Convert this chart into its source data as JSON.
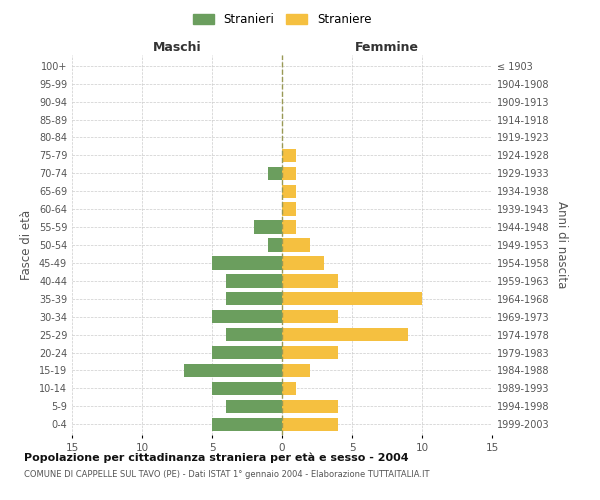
{
  "age_groups": [
    "0-4",
    "5-9",
    "10-14",
    "15-19",
    "20-24",
    "25-29",
    "30-34",
    "35-39",
    "40-44",
    "45-49",
    "50-54",
    "55-59",
    "60-64",
    "65-69",
    "70-74",
    "75-79",
    "80-84",
    "85-89",
    "90-94",
    "95-99",
    "100+"
  ],
  "birth_years": [
    "1999-2003",
    "1994-1998",
    "1989-1993",
    "1984-1988",
    "1979-1983",
    "1974-1978",
    "1969-1973",
    "1964-1968",
    "1959-1963",
    "1954-1958",
    "1949-1953",
    "1944-1948",
    "1939-1943",
    "1934-1938",
    "1929-1933",
    "1924-1928",
    "1919-1923",
    "1914-1918",
    "1909-1913",
    "1904-1908",
    "≤ 1903"
  ],
  "maschi": [
    5,
    4,
    5,
    7,
    5,
    4,
    5,
    4,
    4,
    5,
    1,
    2,
    0,
    0,
    1,
    0,
    0,
    0,
    0,
    0,
    0
  ],
  "femmine": [
    4,
    4,
    1,
    2,
    4,
    9,
    4,
    10,
    4,
    3,
    2,
    1,
    1,
    1,
    1,
    1,
    0,
    0,
    0,
    0,
    0
  ],
  "color_maschi": "#6b9e5e",
  "color_femmine": "#f5c040",
  "title": "Popolazione per cittadinanza straniera per età e sesso - 2004",
  "subtitle": "COMUNE DI CAPPELLE SUL TAVO (PE) - Dati ISTAT 1° gennaio 2004 - Elaborazione TUTTAITALIA.IT",
  "xlabel_left": "Maschi",
  "xlabel_right": "Femmine",
  "ylabel_left": "Fasce di età",
  "ylabel_right": "Anni di nascita",
  "xlim": 15,
  "legend_stranieri": "Stranieri",
  "legend_straniere": "Straniere",
  "background_color": "#ffffff",
  "grid_color": "#cccccc",
  "text_color": "#555555",
  "bar_height": 0.75
}
